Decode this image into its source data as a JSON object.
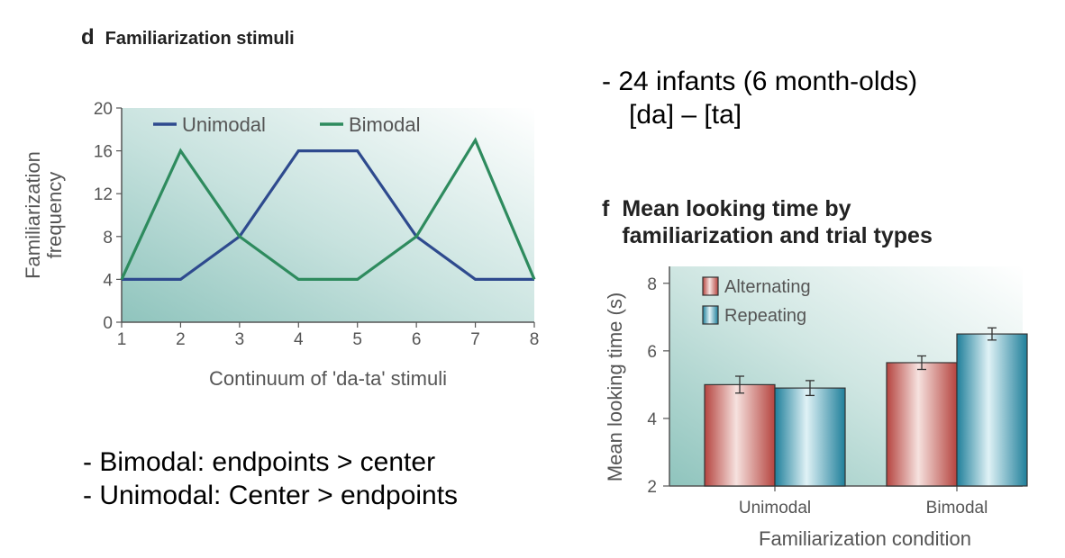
{
  "notes": {
    "study_line1": "- 24 infants (6 month-olds)",
    "study_line2": "[da] – [ta]",
    "bimodal_note": "- Bimodal: endpoints > center",
    "unimodal_note": "- Unimodal: Center > endpoints"
  },
  "chart_data": [
    {
      "panel": "d",
      "type": "line",
      "title": "Familiarization stimuli",
      "xlabel": "Continuum of 'da-ta' stimuli",
      "ylabel": "Familiarization frequency",
      "ylabel_lines": [
        "Familiarization",
        "frequency"
      ],
      "x": [
        1,
        2,
        3,
        4,
        5,
        6,
        7,
        8
      ],
      "xlim": [
        1,
        8
      ],
      "ylim": [
        0,
        20
      ],
      "yticks": [
        0,
        4,
        8,
        12,
        16,
        20
      ],
      "legend": "top-left",
      "series": [
        {
          "name": "Unimodal",
          "color": "#2e4a8e",
          "values": [
            4,
            4,
            8,
            16,
            16,
            8,
            4,
            4
          ]
        },
        {
          "name": "Bimodal",
          "color": "#2e8b5e",
          "values": [
            4,
            16,
            8,
            4,
            4,
            8,
            17,
            4
          ]
        }
      ]
    },
    {
      "panel": "f",
      "type": "bar",
      "title_lines": [
        "Mean looking time by",
        "familiarization and trial types"
      ],
      "xlabel": "Familiarization condition",
      "ylabel": "Mean looking time (s)",
      "categories": [
        "Unimodal",
        "Bimodal"
      ],
      "ylim": [
        2,
        8.5
      ],
      "yticks": [
        2,
        4,
        6,
        8
      ],
      "legend": "top-left",
      "series": [
        {
          "name": "Alternating",
          "color": "#c0504d",
          "values": [
            5.0,
            5.65
          ],
          "errors": [
            0.25,
            0.2
          ]
        },
        {
          "name": "Repeating",
          "color": "#2e8fa8",
          "values": [
            4.9,
            6.5
          ],
          "errors": [
            0.22,
            0.18
          ]
        }
      ]
    }
  ]
}
